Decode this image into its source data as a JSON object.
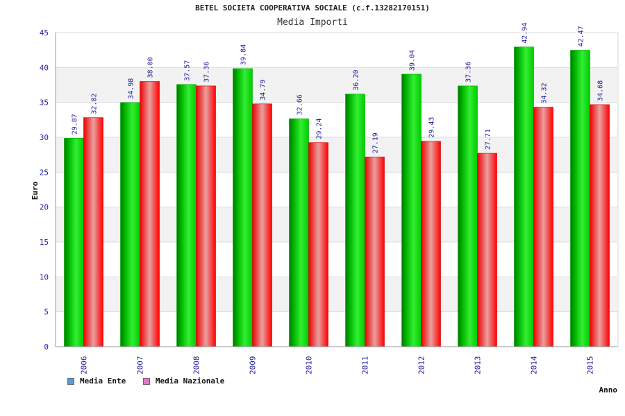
{
  "chart_data": {
    "type": "bar",
    "title": "BETEL SOCIETA COOPERATIVA SOCIALE (c.f.13282170151)",
    "subtitle": "Media Importi",
    "xlabel": "Anno",
    "ylabel": "Euro",
    "ylim": [
      0,
      45
    ],
    "yticks": [
      "0",
      "5",
      "10",
      "15",
      "20",
      "25",
      "30",
      "35",
      "40",
      "45"
    ],
    "categories": [
      "2006",
      "2007",
      "2008",
      "2009",
      "2010",
      "2011",
      "2012",
      "2013",
      "2014",
      "2015"
    ],
    "series": [
      {
        "name": "Media Ente",
        "values": [
          29.87,
          34.98,
          37.57,
          39.84,
          32.66,
          36.2,
          39.04,
          37.36,
          42.94,
          42.47
        ],
        "labels": [
          "29.87",
          "34.98",
          "37.57",
          "39.84",
          "32.66",
          "36.20",
          "39.04",
          "37.36",
          "42.94",
          "42.47"
        ],
        "color": "#00cc00",
        "legend_color": "#5b9bd5"
      },
      {
        "name": "Media Nazionale",
        "values": [
          32.82,
          38.0,
          37.36,
          34.79,
          29.24,
          27.19,
          29.43,
          27.71,
          34.32,
          34.68
        ],
        "labels": [
          "32.82",
          "38.00",
          "37.36",
          "34.79",
          "29.24",
          "27.19",
          "29.43",
          "27.71",
          "34.32",
          "34.68"
        ],
        "color": "#ff0000",
        "legend_color": "#e377c2"
      }
    ],
    "grid": true,
    "legend_position": "bottom-left"
  }
}
